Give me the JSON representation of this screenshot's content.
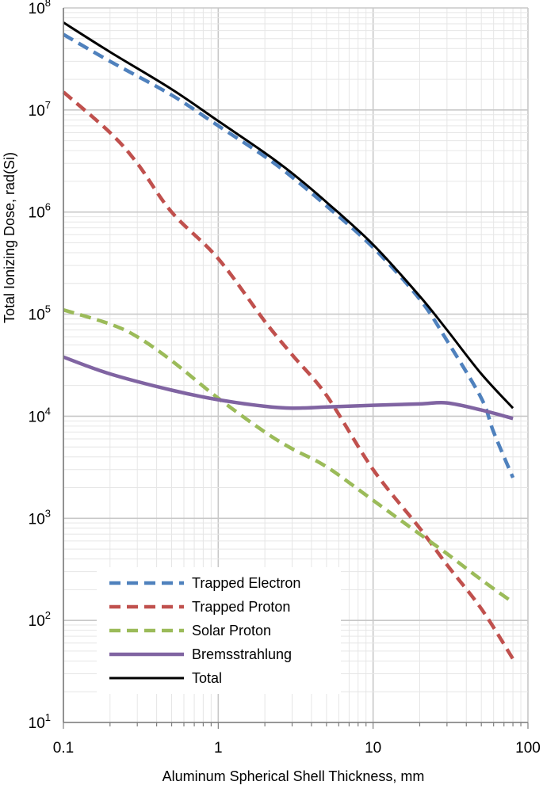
{
  "chart_data": {
    "type": "line",
    "title": "",
    "xlabel": "Aluminum Spherical Shell Thickness, mm",
    "ylabel": "Total Ionizing Dose, rad(Si)",
    "x_scale": "log",
    "y_scale": "log",
    "xlim": [
      0.1,
      100
    ],
    "ylim": [
      10,
      100000000
    ],
    "x_ticks": [
      {
        "value": 0.1,
        "label": "0.1"
      },
      {
        "value": 1,
        "label": "1"
      },
      {
        "value": 10,
        "label": "10"
      },
      {
        "value": 100,
        "label": "100"
      }
    ],
    "y_ticks": [
      {
        "value": 10,
        "base": "10",
        "exp": "1"
      },
      {
        "value": 100,
        "base": "10",
        "exp": "2"
      },
      {
        "value": 1000,
        "base": "10",
        "exp": "3"
      },
      {
        "value": 10000,
        "base": "10",
        "exp": "4"
      },
      {
        "value": 100000,
        "base": "10",
        "exp": "5"
      },
      {
        "value": 1000000,
        "base": "10",
        "exp": "6"
      },
      {
        "value": 10000000,
        "base": "10",
        "exp": "7"
      },
      {
        "value": 100000000,
        "base": "10",
        "exp": "8"
      }
    ],
    "grid": true,
    "legend_position": "bottom-left",
    "series": [
      {
        "name": "Trapped Electron",
        "color": "#4F81BD",
        "dash": true,
        "x": [
          0.1,
          0.2,
          0.5,
          1,
          2,
          3,
          5,
          10,
          20,
          30,
          50,
          60,
          80
        ],
        "y": [
          55000000,
          30000000,
          14000000,
          7000000,
          3500000,
          2200000,
          1150000,
          450000,
          140000,
          55000,
          15000,
          7000,
          2500
        ]
      },
      {
        "name": "Trapped Proton",
        "color": "#C0504D",
        "dash": true,
        "x": [
          0.1,
          0.2,
          0.3,
          0.5,
          1,
          2,
          3,
          5,
          10,
          20,
          30,
          50,
          80
        ],
        "y": [
          15000000,
          6000000,
          3000000,
          1000000,
          350000,
          85000,
          40000,
          16000,
          3000,
          800,
          350,
          130,
          42
        ]
      },
      {
        "name": "Solar Proton",
        "color": "#9BBB59",
        "dash": true,
        "x": [
          0.1,
          0.2,
          0.3,
          0.5,
          1,
          2,
          3,
          5,
          10,
          20,
          30,
          50,
          80
        ],
        "y": [
          110000,
          80000,
          60000,
          35000,
          15000,
          7000,
          4800,
          3200,
          1500,
          700,
          450,
          250,
          150
        ]
      },
      {
        "name": "Bremsstrahlung",
        "color": "#8064A2",
        "dash": false,
        "x": [
          0.1,
          0.2,
          0.5,
          1,
          2,
          3,
          5,
          10,
          20,
          30,
          50,
          80
        ],
        "y": [
          38000,
          26000,
          18000,
          14500,
          12500,
          12000,
          12300,
          12800,
          13200,
          13500,
          11500,
          9500
        ]
      },
      {
        "name": "Total",
        "color": "#000000",
        "dash": false,
        "x": [
          0.1,
          0.2,
          0.5,
          1,
          2,
          3,
          5,
          10,
          20,
          30,
          50,
          80
        ],
        "y": [
          72000000,
          37000000,
          16000000,
          7800000,
          3800000,
          2400000,
          1250000,
          480000,
          150000,
          70000,
          26000,
          12000
        ]
      }
    ]
  }
}
